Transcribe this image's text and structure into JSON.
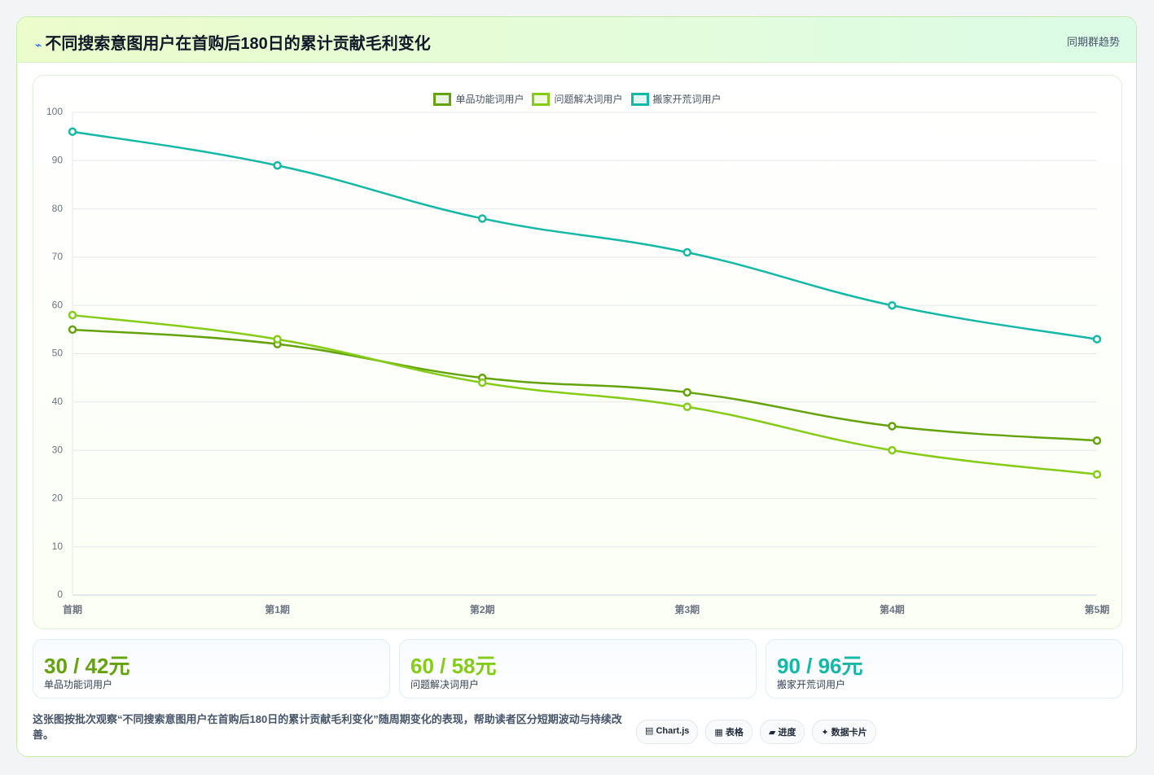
{
  "header": {
    "title": "不同搜索意图用户在首购后180日的累计贡献毛利变化",
    "tag": "同期群趋势"
  },
  "chart_data": {
    "type": "line",
    "categories": [
      "首期",
      "第1期",
      "第2期",
      "第3期",
      "第4期",
      "第5期"
    ],
    "series": [
      {
        "name": "单品功能词用户",
        "color": "#65a30d",
        "values": [
          55,
          52,
          45,
          42,
          35,
          32
        ]
      },
      {
        "name": "问题解决词用户",
        "color": "#84cc16",
        "values": [
          58,
          53,
          44,
          39,
          30,
          25
        ]
      },
      {
        "name": "搬家开荒词用户",
        "color": "#14b8a6",
        "values": [
          96,
          89,
          78,
          71,
          60,
          53
        ]
      }
    ],
    "ylim": [
      0,
      100
    ],
    "yticks": [
      0,
      10,
      20,
      30,
      40,
      50,
      60,
      70,
      80,
      90,
      100
    ],
    "grid": true,
    "legend": "top"
  },
  "cards": [
    {
      "value": "30 / 42元",
      "label": "单品功能词用户"
    },
    {
      "value": "60 / 58元",
      "label": "问题解决词用户"
    },
    {
      "value": "90 / 96元",
      "label": "搬家开荒词用户"
    }
  ],
  "footer": {
    "text": "这张图按批次观察“不同搜索意图用户在首购后180日的累计贡献毛利变化”随周期变化的表现，帮助读者区分短期波动与持续改善。",
    "chips": [
      "Chart.js",
      "表格",
      "进度",
      "数据卡片"
    ]
  }
}
